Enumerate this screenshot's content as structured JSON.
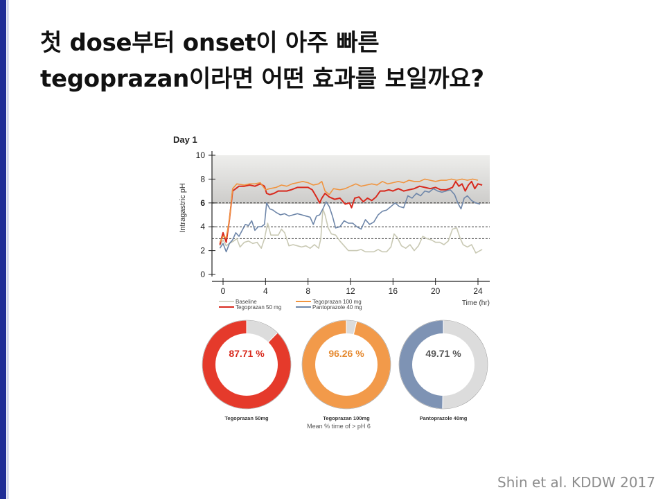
{
  "title": {
    "line1": "첫 dose부터 onset이 아주 빠른",
    "line2": "tegoprazan이라면 어떤 효과를 보일까요?"
  },
  "citation": "Shin et al. KDDW 2017",
  "colors": {
    "accent_bar": "#1f2d96",
    "baseline": "#c9c9b4",
    "tegoprazan_50": "#d8291d",
    "tegoprazan_100": "#f0943f",
    "pantoprazole_40": "#6e86a9",
    "donut_remainder": "#dcdcdc"
  },
  "chart_data": [
    {
      "type": "line",
      "title": "Day 1",
      "xlabel": "Time (hr)",
      "ylabel": "Intragastric pH",
      "xlim": [
        0,
        24
      ],
      "ylim": [
        0,
        10
      ],
      "x_ticks": [
        "0",
        "4",
        "8",
        "12",
        "16",
        "20",
        "24"
      ],
      "y_ticks": [
        "0",
        "2",
        "4",
        "6",
        "8",
        "10"
      ],
      "reference_lines": [
        6,
        4,
        3
      ],
      "legend": [
        "Baseline",
        "Tegoprazan 50 mg",
        "Tegoprazan 100 mg",
        "Pantoprazole 40 mg"
      ],
      "series": [
        {
          "name": "Baseline",
          "color": "#c9c9b4",
          "points": [
            [
              -0.3,
              2.4
            ],
            [
              0,
              2.9
            ],
            [
              0.3,
              2.4
            ],
            [
              0.6,
              2.6
            ],
            [
              1,
              2.8
            ],
            [
              1.3,
              3.0
            ],
            [
              1.6,
              2.3
            ],
            [
              2,
              2.7
            ],
            [
              2.4,
              2.8
            ],
            [
              2.8,
              2.6
            ],
            [
              3.2,
              2.7
            ],
            [
              3.6,
              2.2
            ],
            [
              3.9,
              3.0
            ],
            [
              4.2,
              4.3
            ],
            [
              4.5,
              3.3
            ],
            [
              4.8,
              3.3
            ],
            [
              5.2,
              3.3
            ],
            [
              5.5,
              3.8
            ],
            [
              5.8,
              3.5
            ],
            [
              6.2,
              2.4
            ],
            [
              6.6,
              2.5
            ],
            [
              7,
              2.4
            ],
            [
              7.4,
              2.3
            ],
            [
              7.8,
              2.4
            ],
            [
              8.2,
              2.2
            ],
            [
              8.6,
              2.5
            ],
            [
              9,
              2.2
            ],
            [
              9.2,
              3.0
            ],
            [
              9.4,
              5.5
            ],
            [
              9.6,
              5.0
            ],
            [
              9.9,
              3.9
            ],
            [
              10.2,
              3.4
            ],
            [
              10.6,
              3.3
            ],
            [
              11,
              2.8
            ],
            [
              11.4,
              2.4
            ],
            [
              11.8,
              2.0
            ],
            [
              12.2,
              2.0
            ],
            [
              12.6,
              2.0
            ],
            [
              13,
              2.1
            ],
            [
              13.4,
              1.9
            ],
            [
              13.8,
              1.9
            ],
            [
              14.2,
              1.9
            ],
            [
              14.6,
              2.1
            ],
            [
              15,
              1.9
            ],
            [
              15.4,
              1.9
            ],
            [
              15.8,
              2.3
            ],
            [
              16.1,
              3.4
            ],
            [
              16.4,
              3.1
            ],
            [
              16.8,
              2.4
            ],
            [
              17.2,
              2.2
            ],
            [
              17.6,
              2.5
            ],
            [
              18,
              2.0
            ],
            [
              18.4,
              2.4
            ],
            [
              18.8,
              3.2
            ],
            [
              19.2,
              3.0
            ],
            [
              19.6,
              2.9
            ],
            [
              20,
              2.7
            ],
            [
              20.4,
              2.7
            ],
            [
              20.8,
              2.5
            ],
            [
              21.2,
              2.8
            ],
            [
              21.6,
              3.8
            ],
            [
              22,
              3.9
            ],
            [
              22.3,
              3.1
            ],
            [
              22.6,
              2.5
            ],
            [
              23,
              2.3
            ],
            [
              23.4,
              2.5
            ],
            [
              23.8,
              1.8
            ],
            [
              24.2,
              2.0
            ],
            [
              24.4,
              2.1
            ]
          ]
        },
        {
          "name": "Tegoprazan 50 mg",
          "color": "#d8291d",
          "points": [
            [
              -0.3,
              2.5
            ],
            [
              0,
              3.5
            ],
            [
              0.3,
              2.7
            ],
            [
              0.6,
              4.6
            ],
            [
              0.9,
              7.0
            ],
            [
              1.2,
              7.2
            ],
            [
              1.5,
              7.4
            ],
            [
              2,
              7.4
            ],
            [
              2.5,
              7.5
            ],
            [
              3,
              7.4
            ],
            [
              3.5,
              7.6
            ],
            [
              3.9,
              7.4
            ],
            [
              4.1,
              6.8
            ],
            [
              4.4,
              6.7
            ],
            [
              4.8,
              6.8
            ],
            [
              5.2,
              7.0
            ],
            [
              5.6,
              7.0
            ],
            [
              6,
              7.0
            ],
            [
              6.4,
              7.1
            ],
            [
              7,
              7.3
            ],
            [
              7.5,
              7.3
            ],
            [
              8,
              7.3
            ],
            [
              8.4,
              7.1
            ],
            [
              8.8,
              6.5
            ],
            [
              9.1,
              6.0
            ],
            [
              9.3,
              6.4
            ],
            [
              9.6,
              6.8
            ],
            [
              10,
              6.5
            ],
            [
              10.5,
              6.3
            ],
            [
              11,
              6.4
            ],
            [
              11.5,
              5.9
            ],
            [
              11.9,
              6.0
            ],
            [
              12.1,
              5.6
            ],
            [
              12.4,
              6.4
            ],
            [
              12.8,
              6.5
            ],
            [
              13.2,
              6.1
            ],
            [
              13.6,
              6.4
            ],
            [
              14,
              6.2
            ],
            [
              14.4,
              6.5
            ],
            [
              14.8,
              7.0
            ],
            [
              15.2,
              7.0
            ],
            [
              15.6,
              7.1
            ],
            [
              16,
              7.0
            ],
            [
              16.5,
              7.2
            ],
            [
              17,
              7.0
            ],
            [
              17.5,
              7.1
            ],
            [
              18,
              7.2
            ],
            [
              18.5,
              7.4
            ],
            [
              19,
              7.3
            ],
            [
              19.5,
              7.2
            ],
            [
              20,
              7.3
            ],
            [
              20.5,
              7.1
            ],
            [
              21,
              7.1
            ],
            [
              21.3,
              7.2
            ],
            [
              21.6,
              7.3
            ],
            [
              21.9,
              7.8
            ],
            [
              22.2,
              7.4
            ],
            [
              22.5,
              7.6
            ],
            [
              22.8,
              7.0
            ],
            [
              23.1,
              7.5
            ],
            [
              23.4,
              7.8
            ],
            [
              23.7,
              7.2
            ],
            [
              24,
              7.6
            ],
            [
              24.4,
              7.5
            ]
          ]
        },
        {
          "name": "Tegoprazan 100 mg",
          "color": "#f0943f",
          "points": [
            [
              -0.3,
              2.7
            ],
            [
              0,
              3.2
            ],
            [
              0.3,
              3.1
            ],
            [
              0.6,
              4.6
            ],
            [
              0.9,
              7.2
            ],
            [
              1.3,
              7.6
            ],
            [
              2,
              7.5
            ],
            [
              2.5,
              7.6
            ],
            [
              3,
              7.6
            ],
            [
              3.5,
              7.7
            ],
            [
              4,
              7.1
            ],
            [
              4.4,
              7.2
            ],
            [
              5,
              7.3
            ],
            [
              5.5,
              7.5
            ],
            [
              6,
              7.4
            ],
            [
              6.5,
              7.6
            ],
            [
              7,
              7.7
            ],
            [
              7.5,
              7.8
            ],
            [
              8,
              7.7
            ],
            [
              8.5,
              7.5
            ],
            [
              9,
              7.6
            ],
            [
              9.3,
              7.8
            ],
            [
              9.6,
              7.0
            ],
            [
              10,
              6.7
            ],
            [
              10.4,
              7.2
            ],
            [
              11,
              7.1
            ],
            [
              11.5,
              7.2
            ],
            [
              12,
              7.4
            ],
            [
              12.5,
              7.6
            ],
            [
              13,
              7.4
            ],
            [
              13.5,
              7.5
            ],
            [
              14,
              7.6
            ],
            [
              14.5,
              7.5
            ],
            [
              15,
              7.8
            ],
            [
              15.5,
              7.6
            ],
            [
              16,
              7.7
            ],
            [
              16.5,
              7.8
            ],
            [
              17,
              7.7
            ],
            [
              17.5,
              7.9
            ],
            [
              18,
              7.8
            ],
            [
              18.5,
              7.8
            ],
            [
              19,
              8.0
            ],
            [
              19.5,
              7.9
            ],
            [
              20,
              7.8
            ],
            [
              20.5,
              7.9
            ],
            [
              21,
              7.9
            ],
            [
              21.5,
              8.0
            ],
            [
              22,
              7.9
            ],
            [
              22.5,
              8.0
            ],
            [
              23,
              7.9
            ],
            [
              23.5,
              8.0
            ],
            [
              24,
              7.9
            ]
          ]
        },
        {
          "name": "Pantoprazole 40 mg",
          "color": "#6e86a9",
          "points": [
            [
              -0.3,
              2.2
            ],
            [
              0,
              2.6
            ],
            [
              0.3,
              1.9
            ],
            [
              0.6,
              2.6
            ],
            [
              0.9,
              2.9
            ],
            [
              1.2,
              3.5
            ],
            [
              1.5,
              3.2
            ],
            [
              1.8,
              3.7
            ],
            [
              2.1,
              4.2
            ],
            [
              2.4,
              4.1
            ],
            [
              2.7,
              4.5
            ],
            [
              3,
              3.7
            ],
            [
              3.3,
              4.0
            ],
            [
              3.6,
              4.0
            ],
            [
              3.9,
              4.2
            ],
            [
              4.1,
              6.0
            ],
            [
              4.4,
              5.5
            ],
            [
              4.7,
              5.4
            ],
            [
              5,
              5.2
            ],
            [
              5.4,
              5.0
            ],
            [
              5.8,
              5.1
            ],
            [
              6.2,
              4.9
            ],
            [
              6.6,
              5.0
            ],
            [
              7,
              5.1
            ],
            [
              7.4,
              5.0
            ],
            [
              7.8,
              4.9
            ],
            [
              8.2,
              4.8
            ],
            [
              8.5,
              4.2
            ],
            [
              8.8,
              4.9
            ],
            [
              9.1,
              5.0
            ],
            [
              9.4,
              5.5
            ],
            [
              9.7,
              6.1
            ],
            [
              10,
              5.7
            ],
            [
              10.3,
              4.9
            ],
            [
              10.6,
              3.9
            ],
            [
              11,
              4.0
            ],
            [
              11.4,
              4.5
            ],
            [
              11.8,
              4.3
            ],
            [
              12.2,
              4.3
            ],
            [
              12.6,
              4.0
            ],
            [
              13,
              3.8
            ],
            [
              13.4,
              4.6
            ],
            [
              13.8,
              4.2
            ],
            [
              14.2,
              4.4
            ],
            [
              14.6,
              5.0
            ],
            [
              15,
              5.3
            ],
            [
              15.4,
              5.4
            ],
            [
              15.8,
              5.7
            ],
            [
              16.2,
              6.0
            ],
            [
              16.6,
              5.7
            ],
            [
              17,
              5.6
            ],
            [
              17.4,
              6.6
            ],
            [
              17.8,
              6.4
            ],
            [
              18.2,
              6.8
            ],
            [
              18.6,
              6.6
            ],
            [
              19,
              7.0
            ],
            [
              19.4,
              6.9
            ],
            [
              19.8,
              7.2
            ],
            [
              20.2,
              7.0
            ],
            [
              20.6,
              6.9
            ],
            [
              21,
              7.0
            ],
            [
              21.4,
              7.1
            ],
            [
              21.8,
              6.7
            ],
            [
              22.1,
              6.0
            ],
            [
              22.4,
              5.5
            ],
            [
              22.7,
              6.4
            ],
            [
              23,
              6.6
            ],
            [
              23.4,
              6.2
            ],
            [
              23.8,
              6.0
            ],
            [
              24.2,
              5.9
            ]
          ]
        }
      ]
    },
    {
      "type": "pie",
      "caption": "Mean % time of > pH 6",
      "slices": [
        {
          "name": "Tegoprazan 50mg",
          "value": 87.71,
          "label": "87.71 %",
          "color": "#e53a2b",
          "label_color": "#d8291d"
        },
        {
          "name": "Tegoprazan 100mg",
          "value": 96.26,
          "label": "96.26 %",
          "color": "#f29a4a",
          "label_color": "#e5892f"
        },
        {
          "name": "Pantoprazole 40mg",
          "value": 49.71,
          "label": "49.71 %",
          "color": "#7e93b4",
          "label_color": "#555555"
        }
      ]
    }
  ]
}
